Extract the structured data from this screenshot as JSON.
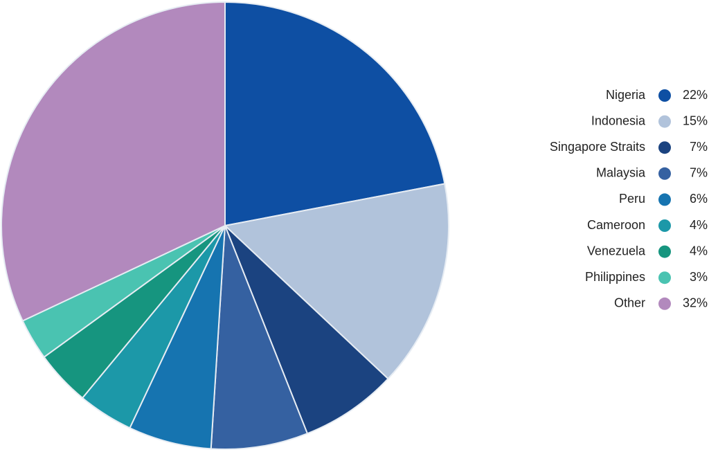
{
  "chart_data": {
    "type": "pie",
    "categories": [
      "Nigeria",
      "Indonesia",
      "Singapore Straits",
      "Malaysia",
      "Peru",
      "Cameroon",
      "Venezuela",
      "Philippines",
      "Other"
    ],
    "values": [
      22,
      15,
      7,
      7,
      6,
      4,
      4,
      3,
      32
    ],
    "value_labels": [
      "22%",
      "15%",
      "7%",
      "7%",
      "6%",
      "4%",
      "4%",
      "3%",
      "32%"
    ],
    "colors": [
      "#0e4fa3",
      "#b1c3db",
      "#1b4380",
      "#3561a1",
      "#1674b0",
      "#1c98a8",
      "#16957f",
      "#4ac3b1",
      "#b289bd"
    ],
    "legend": "right"
  }
}
